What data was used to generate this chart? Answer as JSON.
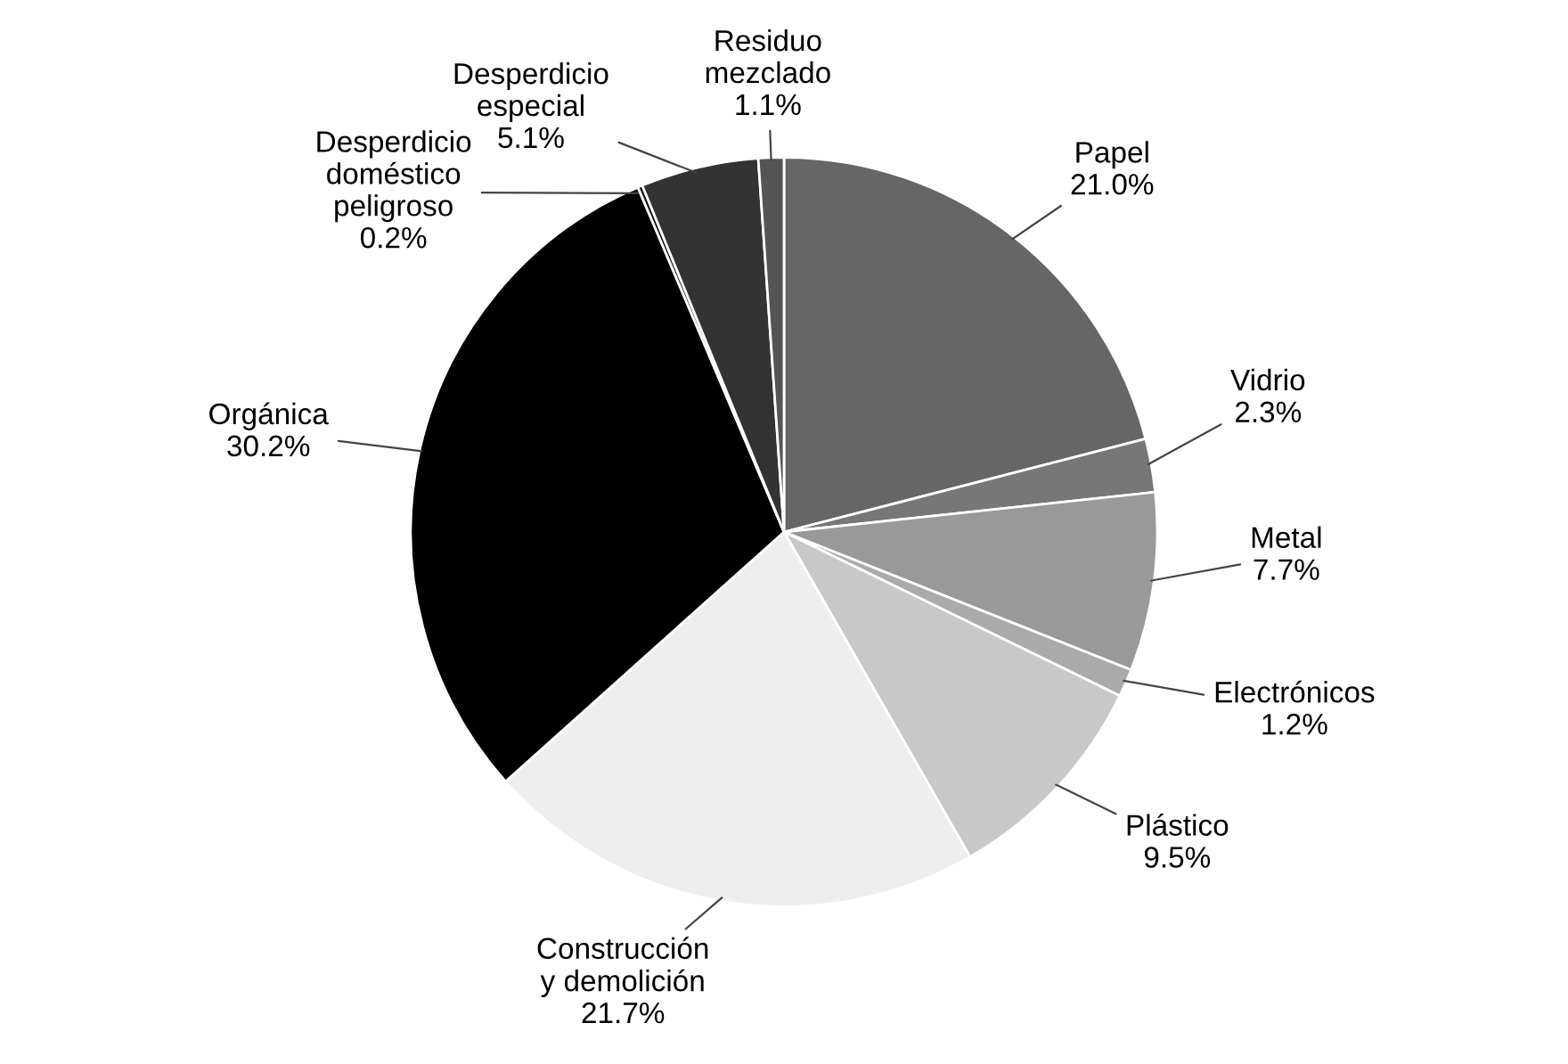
{
  "chart_data": {
    "type": "pie",
    "categories": [
      "Papel",
      "Vidrio",
      "Metal",
      "Electrónicos",
      "Plástico",
      "Construcción\ny demolición",
      "Orgánica",
      "Desperdicio\ndoméstico\npeligroso",
      "Desperdicio\nespecial",
      "Residuo\nmezclado"
    ],
    "values": [
      21.0,
      2.3,
      7.7,
      1.2,
      9.5,
      21.7,
      30.2,
      0.2,
      5.1,
      1.1
    ],
    "value_labels": [
      "21.0%",
      "2.3%",
      "7.7%",
      "1.2%",
      "9.5%",
      "21.7%",
      "30.2%",
      "0.2%",
      "5.1%",
      "1.1%"
    ],
    "colors": [
      "#666666",
      "#777777",
      "#999999",
      "#aaaaaa",
      "#c8c8c8",
      "#eeeeee",
      "#000000",
      "#111111",
      "#333333",
      "#555555"
    ]
  }
}
